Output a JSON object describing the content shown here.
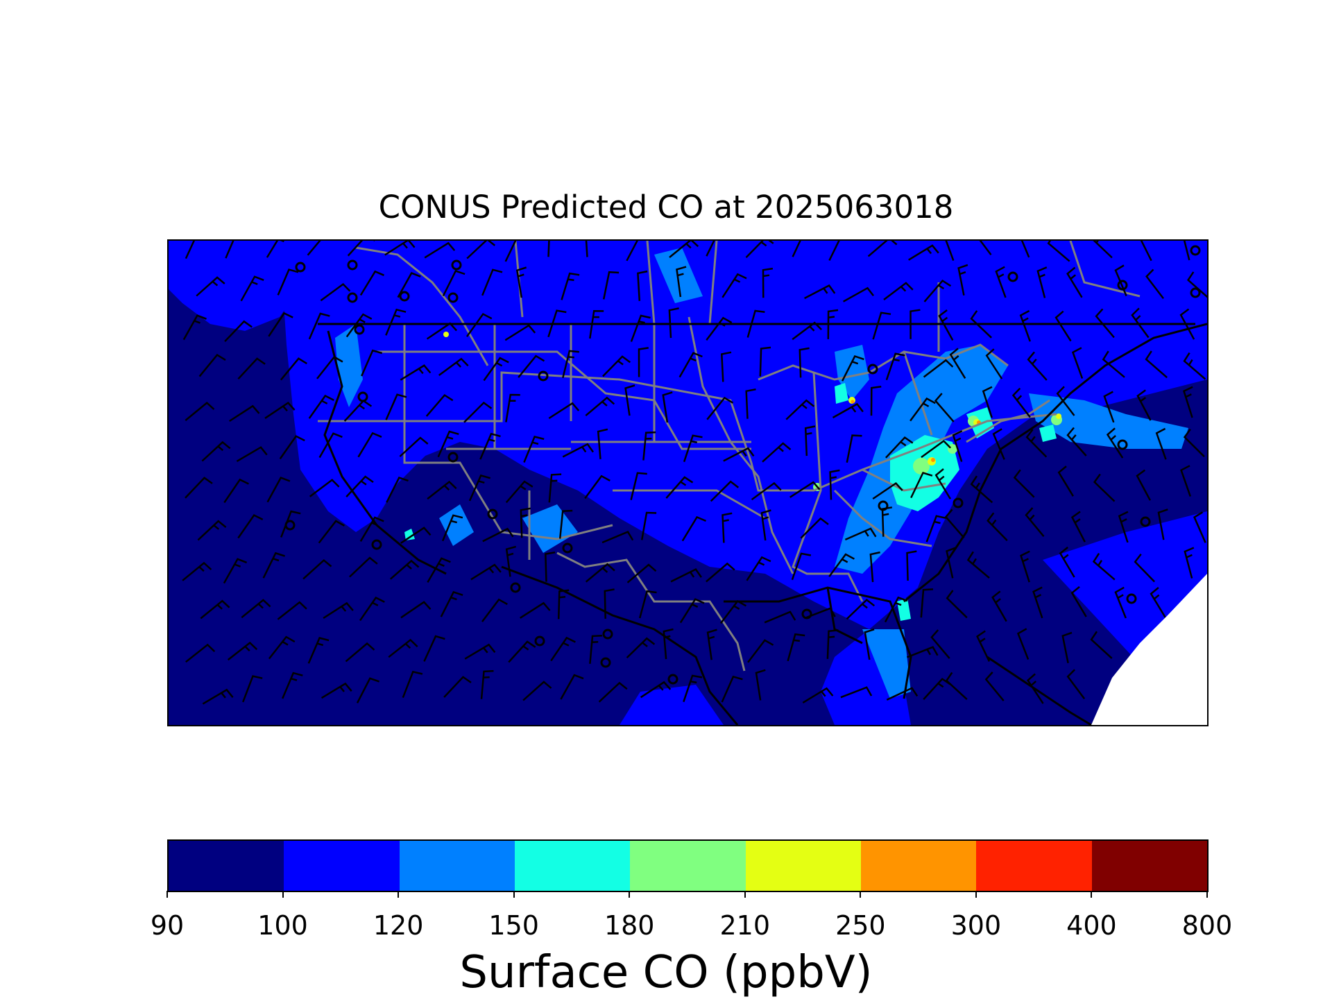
{
  "title": "CONUS Predicted CO at 2025063018",
  "colorbar": {
    "label": "Surface CO (ppbV)",
    "ticks": [
      "90",
      "100",
      "120",
      "150",
      "180",
      "210",
      "250",
      "300",
      "400",
      "800"
    ],
    "colors": [
      "#000080",
      "#0000ff",
      "#0080ff",
      "#13ffe4",
      "#80ff80",
      "#e4ff13",
      "#ff9400",
      "#ff2200",
      "#800000"
    ]
  },
  "map": {
    "background_level_color": "#000080",
    "legend_type": "filled contour with wind barbs",
    "hotspot_colors": [
      "#0000ff",
      "#0080ff",
      "#13ffe4",
      "#80ff80",
      "#e4ff13",
      "#ff9400"
    ]
  }
}
